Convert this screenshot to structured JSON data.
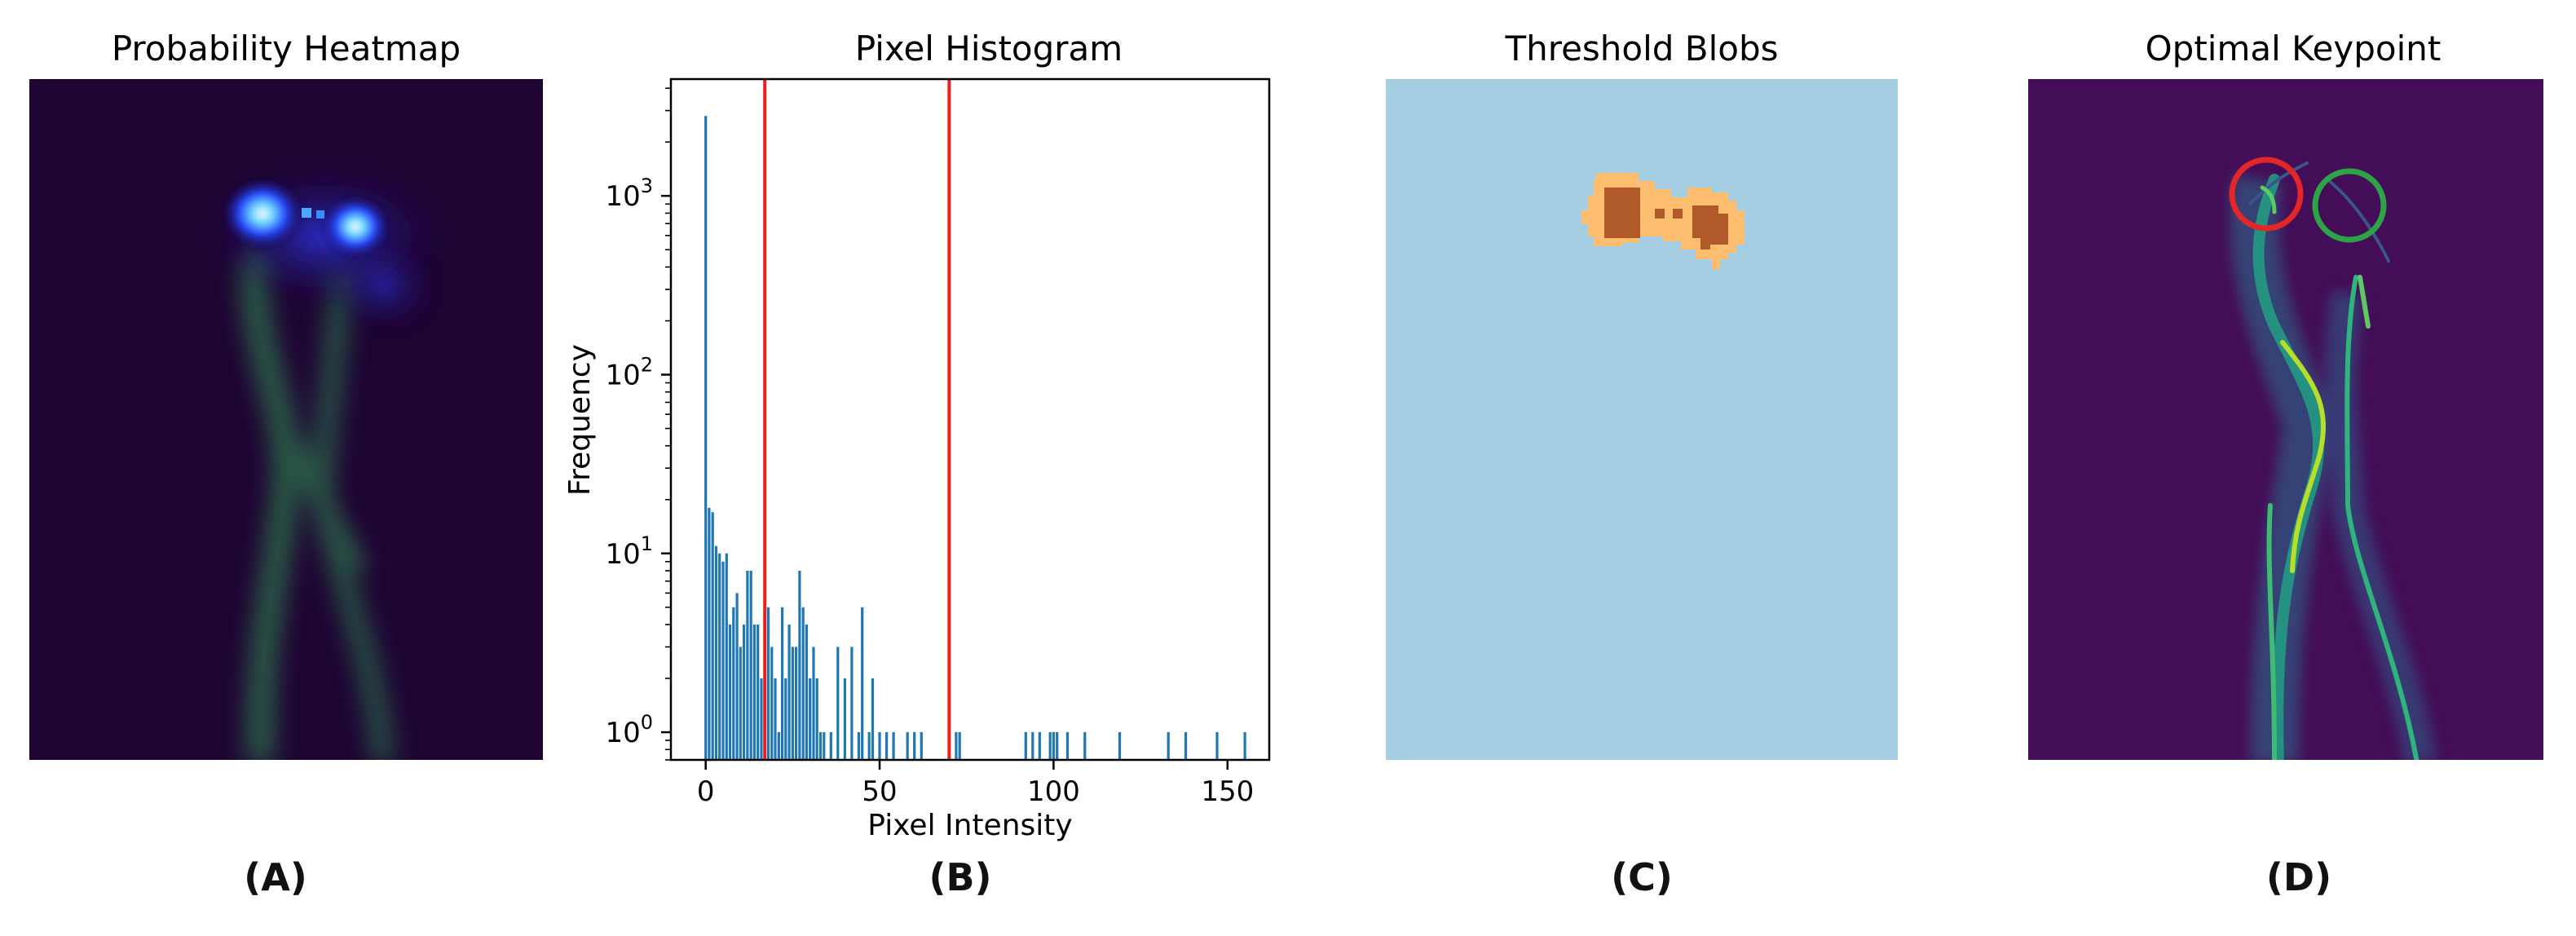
{
  "panels": [
    {
      "title": "Probability Heatmap",
      "caption": "(A)"
    },
    {
      "title": "Pixel Histogram",
      "caption": "(B)"
    },
    {
      "title": "Threshold Blobs",
      "caption": "(C)"
    },
    {
      "title": "Optimal Keypoint",
      "caption": "(D)"
    }
  ],
  "chart_data": {
    "type": "bar",
    "title": "Pixel Histogram",
    "xlabel": "Pixel Intensity",
    "ylabel": "Frequency",
    "yscale": "log",
    "xlim": [
      -10,
      162
    ],
    "ylim": [
      0.7,
      4500
    ],
    "xticks": [
      0,
      50,
      100,
      150
    ],
    "yticks": [
      {
        "value": 1,
        "base": "10",
        "exp": "0"
      },
      {
        "value": 10,
        "base": "10",
        "exp": "1"
      },
      {
        "value": 100,
        "base": "10",
        "exp": "2"
      },
      {
        "value": 1000,
        "base": "10",
        "exp": "3"
      }
    ],
    "thresholds": [
      17,
      70
    ],
    "threshold_color": "#e8211f",
    "bar_color": "#1f77b4",
    "x": [
      0,
      1,
      2,
      3,
      4,
      5,
      6,
      7,
      8,
      9,
      10,
      11,
      12,
      13,
      14,
      15,
      16,
      17,
      18,
      19,
      20,
      21,
      22,
      23,
      24,
      25,
      26,
      27,
      28,
      29,
      30,
      31,
      32,
      33,
      34,
      36,
      38,
      40,
      42,
      44,
      45,
      47,
      48,
      50,
      52,
      54,
      58,
      60,
      62,
      72,
      73,
      92,
      94,
      96,
      99,
      100,
      101,
      104,
      109,
      119,
      133,
      138,
      147,
      155
    ],
    "values": [
      2800,
      18,
      17,
      11,
      10,
      9,
      10,
      4,
      5,
      6,
      3,
      4,
      8,
      8,
      4,
      4,
      2,
      3,
      5,
      3,
      2,
      1,
      5,
      2,
      4,
      3,
      3,
      8,
      5,
      4,
      2,
      3,
      2,
      1,
      1,
      1,
      3,
      2,
      3,
      1,
      5,
      1,
      2,
      1,
      1,
      1,
      1,
      1,
      1,
      1,
      1,
      1,
      1,
      1,
      1,
      1,
      1,
      1,
      1,
      1,
      1,
      1,
      1,
      1
    ]
  }
}
